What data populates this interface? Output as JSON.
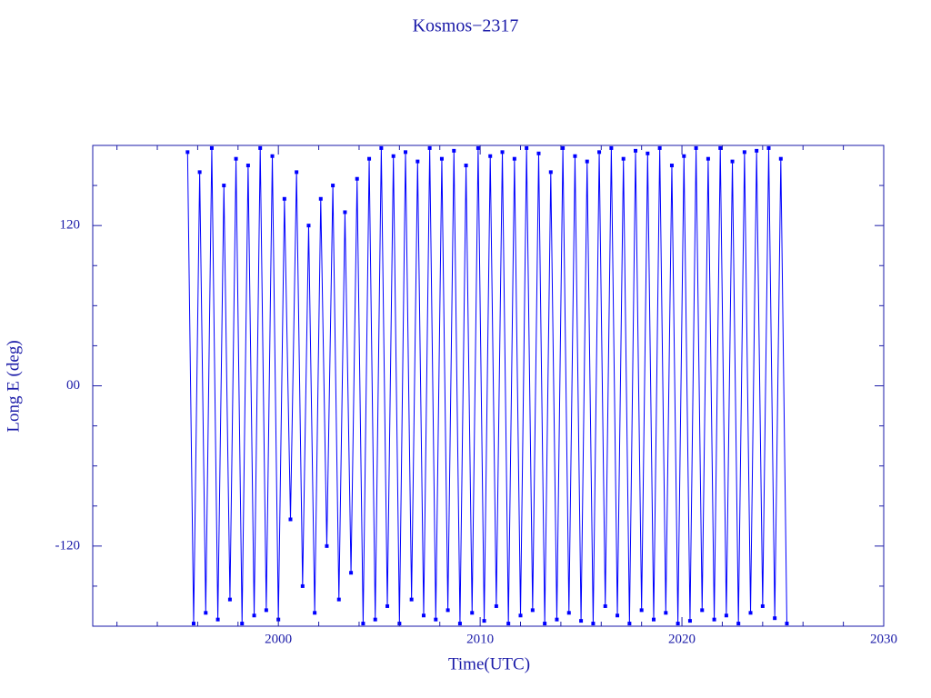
{
  "chart_data": {
    "type": "line",
    "title": "Kosmos−2317",
    "x_label": "Time(UTC)",
    "y_label": "Long E (deg)",
    "color": "#0000ff",
    "axis_color": "#1a1aa8",
    "xlim": [
      1990.8,
      2030
    ],
    "ylim": [
      -180,
      180
    ],
    "xticks": [
      2000,
      2010,
      2020,
      2030
    ],
    "yticks": [
      -120,
      {
        "value": 0,
        "label": "00"
      },
      120
    ],
    "xminorticks": [
      1992,
      1994,
      1996,
      1998,
      2002,
      2004,
      2006,
      2008,
      2012,
      2014,
      2016,
      2018,
      2022,
      2024,
      2026,
      2028
    ],
    "yminorticks": [
      -150,
      -90,
      -60,
      -30,
      30,
      60,
      90,
      150
    ],
    "x": [
      1995.5,
      1995.8,
      1996.1,
      1996.4,
      1996.7,
      1997.0,
      1997.3,
      1997.6,
      1997.9,
      1998.2,
      1998.5,
      1998.8,
      1999.1,
      1999.4,
      1999.7,
      2000.0,
      2000.3,
      2000.6,
      2000.9,
      2001.2,
      2001.5,
      2001.8,
      2002.1,
      2002.4,
      2002.7,
      2003.0,
      2003.3,
      2003.6,
      2003.9,
      2004.2,
      2004.5,
      2004.8,
      2005.1,
      2005.4,
      2005.7,
      2006.0,
      2006.3,
      2006.6,
      2006.9,
      2007.2,
      2007.5,
      2007.8,
      2008.1,
      2008.4,
      2008.7,
      2009.0,
      2009.3,
      2009.6,
      2009.9,
      2010.2,
      2010.5,
      2010.8,
      2011.1,
      2011.4,
      2011.7,
      2012.0,
      2012.3,
      2012.6,
      2012.9,
      2013.2,
      2013.5,
      2013.8,
      2014.1,
      2014.4,
      2014.7,
      2015.0,
      2015.3,
      2015.6,
      2015.9,
      2016.2,
      2016.5,
      2016.8,
      2017.1,
      2017.4,
      2017.7,
      2018.0,
      2018.3,
      2018.6,
      2018.9,
      2019.2,
      2019.5,
      2019.8,
      2020.1,
      2020.4,
      2020.7,
      2021.0,
      2021.3,
      2021.6,
      2021.9,
      2022.2,
      2022.5,
      2022.8,
      2023.1,
      2023.4,
      2023.7,
      2024.0,
      2024.3,
      2024.6,
      2024.9,
      2025.2
    ],
    "values": [
      175,
      -178,
      160,
      -170,
      178,
      -175,
      150,
      -160,
      170,
      -178,
      165,
      -172,
      178,
      -168,
      172,
      -175,
      140,
      -100,
      160,
      -150,
      120,
      -170,
      140,
      -120,
      150,
      -160,
      130,
      -140,
      155,
      -178,
      170,
      -175,
      178,
      -165,
      172,
      -178,
      175,
      -160,
      168,
      -172,
      178,
      -175,
      170,
      -168,
      176,
      -178,
      165,
      -170,
      178,
      -176,
      172,
      -165,
      175,
      -178,
      170,
      -172,
      178,
      -168,
      174,
      -178,
      160,
      -175,
      178,
      -170,
      172,
      -176,
      168,
      -178,
      175,
      -165,
      178,
      -172,
      170,
      -178,
      176,
      -168,
      174,
      -175,
      178,
      -170,
      165,
      -178,
      172,
      -176,
      178,
      -168,
      170,
      -175,
      178,
      -172,
      168,
      -178,
      175,
      -170,
      176,
      -165,
      178,
      -174,
      170,
      -178
    ]
  }
}
